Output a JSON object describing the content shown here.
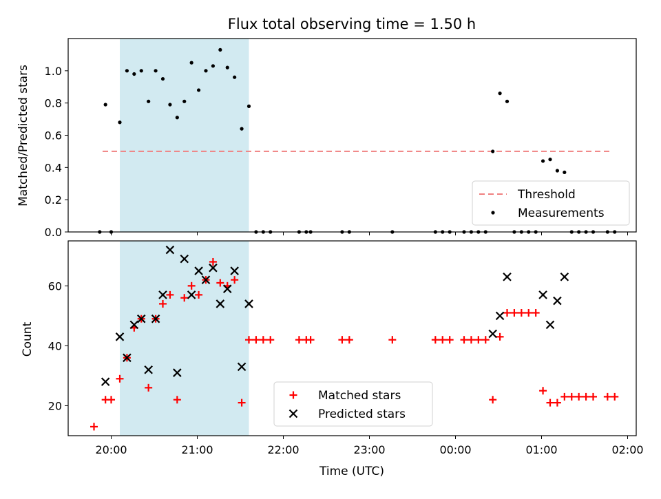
{
  "chart_data": [
    {
      "type": "scatter",
      "title": "Flux total observing time = 1.50 h",
      "xlabel": "",
      "ylabel": "Matched/Predicted stars",
      "xlim": [
        "19:30",
        "02:06"
      ],
      "ylim": [
        0,
        1.2
      ],
      "yticks": [
        "0.0",
        "0.2",
        "0.4",
        "0.6",
        "0.8",
        "1.0"
      ],
      "shaded_span": [
        "20:06",
        "21:36"
      ],
      "threshold": {
        "name": "Threshold",
        "value": 0.5,
        "x": [
          "19:54",
          "01:48"
        ],
        "color": "#f08080"
      },
      "series": [
        {
          "name": "Measurements",
          "marker": "dot",
          "color": "#000000",
          "x": [
            "19:52",
            "19:56",
            "20:00",
            "20:06",
            "20:11",
            "20:16",
            "20:21",
            "20:26",
            "20:31",
            "20:36",
            "20:41",
            "20:46",
            "20:51",
            "20:56",
            "21:01",
            "21:06",
            "21:11",
            "21:16",
            "21:21",
            "21:26",
            "21:31",
            "21:36",
            "21:41",
            "21:46",
            "21:51",
            "22:11",
            "22:16",
            "22:19",
            "22:41",
            "22:46",
            "23:16",
            "23:46",
            "23:51",
            "23:56",
            "00:06",
            "00:11",
            "00:16",
            "00:21",
            "00:26",
            "00:31",
            "00:36",
            "00:41",
            "00:46",
            "00:51",
            "00:56",
            "01:01",
            "01:06",
            "01:11",
            "01:16",
            "01:21",
            "01:26",
            "01:31",
            "01:36",
            "01:46",
            "01:51"
          ],
          "y": [
            0.0,
            0.79,
            0.0,
            0.68,
            1.0,
            0.98,
            1.0,
            0.81,
            1.0,
            0.95,
            0.79,
            0.71,
            0.81,
            1.05,
            0.88,
            1.0,
            1.03,
            1.13,
            1.02,
            0.96,
            0.64,
            0.78,
            0.0,
            0.0,
            0.0,
            0.0,
            0.0,
            0.0,
            0.0,
            0.0,
            0.0,
            0.0,
            0.0,
            0.0,
            0.0,
            0.0,
            0.0,
            0.0,
            0.5,
            0.86,
            0.81,
            0.0,
            0.0,
            0.0,
            0.0,
            0.44,
            0.45,
            0.38,
            0.37,
            0.0,
            0.0,
            0.0,
            0.0,
            0.0,
            0.0
          ]
        }
      ],
      "legend": {
        "position": "lower right",
        "entries": [
          "Threshold",
          "Measurements"
        ]
      }
    },
    {
      "type": "scatter",
      "title": "",
      "xlabel": "Time (UTC)",
      "ylabel": "Count",
      "xlim": [
        "19:30",
        "02:06"
      ],
      "ylim": [
        10,
        75
      ],
      "xticks": [
        "20:00",
        "21:00",
        "22:00",
        "23:00",
        "00:00",
        "01:00",
        "02:00"
      ],
      "yticks": [
        "20",
        "40",
        "60"
      ],
      "shaded_span": [
        "20:06",
        "21:36"
      ],
      "series": [
        {
          "name": "Matched stars",
          "marker": "plus",
          "color": "#ff0000",
          "x": [
            "19:48",
            "19:56",
            "20:00",
            "20:06",
            "20:11",
            "20:16",
            "20:21",
            "20:26",
            "20:31",
            "20:36",
            "20:41",
            "20:46",
            "20:51",
            "20:56",
            "21:01",
            "21:06",
            "21:11",
            "21:16",
            "21:21",
            "21:26",
            "21:31",
            "21:36",
            "21:41",
            "21:46",
            "21:51",
            "22:11",
            "22:16",
            "22:19",
            "22:41",
            "22:46",
            "23:16",
            "23:46",
            "23:51",
            "23:56",
            "00:06",
            "00:11",
            "00:16",
            "00:21",
            "00:26",
            "00:31",
            "00:36",
            "00:41",
            "00:46",
            "00:51",
            "00:56",
            "01:01",
            "01:06",
            "01:11",
            "01:16",
            "01:21",
            "01:26",
            "01:31",
            "01:36",
            "01:46",
            "01:51"
          ],
          "y": [
            13,
            22,
            22,
            29,
            36,
            46,
            49,
            26,
            49,
            54,
            57,
            22,
            56,
            60,
            57,
            62,
            68,
            61,
            60,
            62,
            21,
            42,
            42,
            42,
            42,
            42,
            42,
            42,
            42,
            42,
            42,
            42,
            42,
            42,
            42,
            42,
            42,
            42,
            22,
            43,
            51,
            51,
            51,
            51,
            51,
            25,
            21,
            21,
            23,
            23,
            23,
            23,
            23,
            23,
            23
          ]
        },
        {
          "name": "Predicted stars",
          "marker": "x",
          "color": "#000000",
          "x": [
            "19:56",
            "20:06",
            "20:11",
            "20:16",
            "20:21",
            "20:26",
            "20:31",
            "20:36",
            "20:41",
            "20:46",
            "20:51",
            "20:56",
            "21:01",
            "21:06",
            "21:11",
            "21:16",
            "21:21",
            "21:26",
            "21:31",
            "21:36",
            "00:26",
            "00:31",
            "00:36",
            "01:01",
            "01:06",
            "01:11",
            "01:16"
          ],
          "y": [
            28,
            43,
            36,
            47,
            49,
            32,
            49,
            57,
            72,
            31,
            69,
            57,
            65,
            62,
            66,
            54,
            59,
            65,
            33,
            54,
            44,
            50,
            63,
            57,
            47,
            55,
            63
          ]
        }
      ],
      "legend": {
        "position": "lower center",
        "entries": [
          "Matched stars",
          "Predicted stars"
        ]
      }
    }
  ]
}
